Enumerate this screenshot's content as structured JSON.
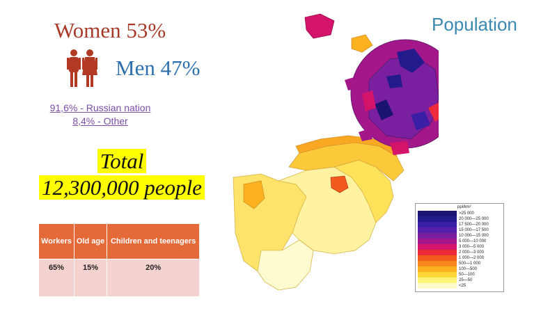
{
  "gender": {
    "women": "Women 53%",
    "men": "Men 47%",
    "icon": "people-icon"
  },
  "nationality": {
    "russian": "91,6% - Russian nation",
    "other": "8,4% - Other"
  },
  "total": {
    "line1": "Total",
    "line2": "12,300,000 people"
  },
  "table": {
    "headers": [
      "Workers",
      "Old age",
      "Children and teenagers"
    ],
    "values": [
      "65%",
      "15%",
      "20%"
    ]
  },
  "map": {
    "title": "Population",
    "legend_header": "ppl/km²",
    "legend": [
      {
        "label": ">25 000",
        "color": "#1a1470"
      },
      {
        "label": "20 000—25 000",
        "color": "#231a8c"
      },
      {
        "label": "17 500—20 000",
        "color": "#3a1fa6"
      },
      {
        "label": "15 000—17 500",
        "color": "#5620ad"
      },
      {
        "label": "10 000—15 000",
        "color": "#7a1fa0"
      },
      {
        "label": "5 000—10 000",
        "color": "#a3178a"
      },
      {
        "label": "3 000—5 000",
        "color": "#d4146a"
      },
      {
        "label": "2 000—3 000",
        "color": "#ec2a3a"
      },
      {
        "label": "1 000—2 000",
        "color": "#f25a1e"
      },
      {
        "label": "500—1 000",
        "color": "#f7861c"
      },
      {
        "label": "100—500",
        "color": "#fbb21e"
      },
      {
        "label": "50—100",
        "color": "#fdd535"
      },
      {
        "label": "25—50",
        "color": "#fef37a"
      },
      {
        "label": "<25",
        "color": "#fffbc8"
      }
    ]
  }
}
